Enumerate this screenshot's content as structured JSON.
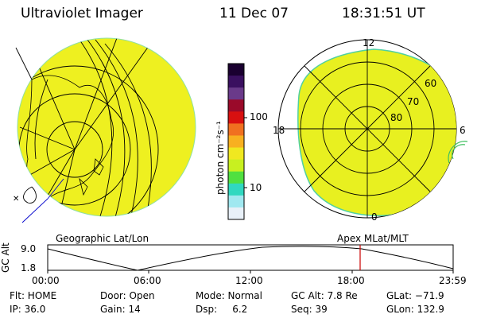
{
  "header": {
    "title": "Ultraviolet Imager",
    "date": "11 Dec 07",
    "time": "18:31:51 UT"
  },
  "colorbar": {
    "unit_label": "photon cm⁻²s⁻¹",
    "ticks": [
      "100",
      "10"
    ],
    "colors": [
      "#1a0030",
      "#3a1060",
      "#6a3a8a",
      "#9a0a2a",
      "#d81010",
      "#f07020",
      "#f8b020",
      "#f0e820",
      "#c8f020",
      "#50e040",
      "#30d8c0",
      "#a0e8f0",
      "#e8f0f8"
    ]
  },
  "left_panel": {
    "label": "Geographic Lat/Lon",
    "fill_color": "#eef020"
  },
  "right_panel": {
    "label": "Apex MLat/MLT",
    "mlt_labels": {
      "top": "12",
      "left": "18",
      "right": "6",
      "bottom": "0"
    },
    "lat_labels": [
      "60",
      "70",
      "80"
    ],
    "fill_color": "#e8f020"
  },
  "timeline": {
    "axis_label": "GC Alt",
    "y_ticks": [
      "9.0",
      "1.8"
    ],
    "x_ticks": [
      "00:00",
      "06:00",
      "12:00",
      "18:00",
      "23:59"
    ],
    "current_marker_color": "#cc0000"
  },
  "status": {
    "flt": "Flt: HOME",
    "ip": "IP: 36.0",
    "door": "Door: Open",
    "gain": "Gain: 14",
    "mode": "Mode: Normal",
    "dsp": "Dsp:     6.2",
    "gc_alt": "GC Alt: 7.8 Re",
    "seq": "Seq: 39",
    "glat": "GLat: −71.9",
    "glon": "GLon: 132.9"
  }
}
